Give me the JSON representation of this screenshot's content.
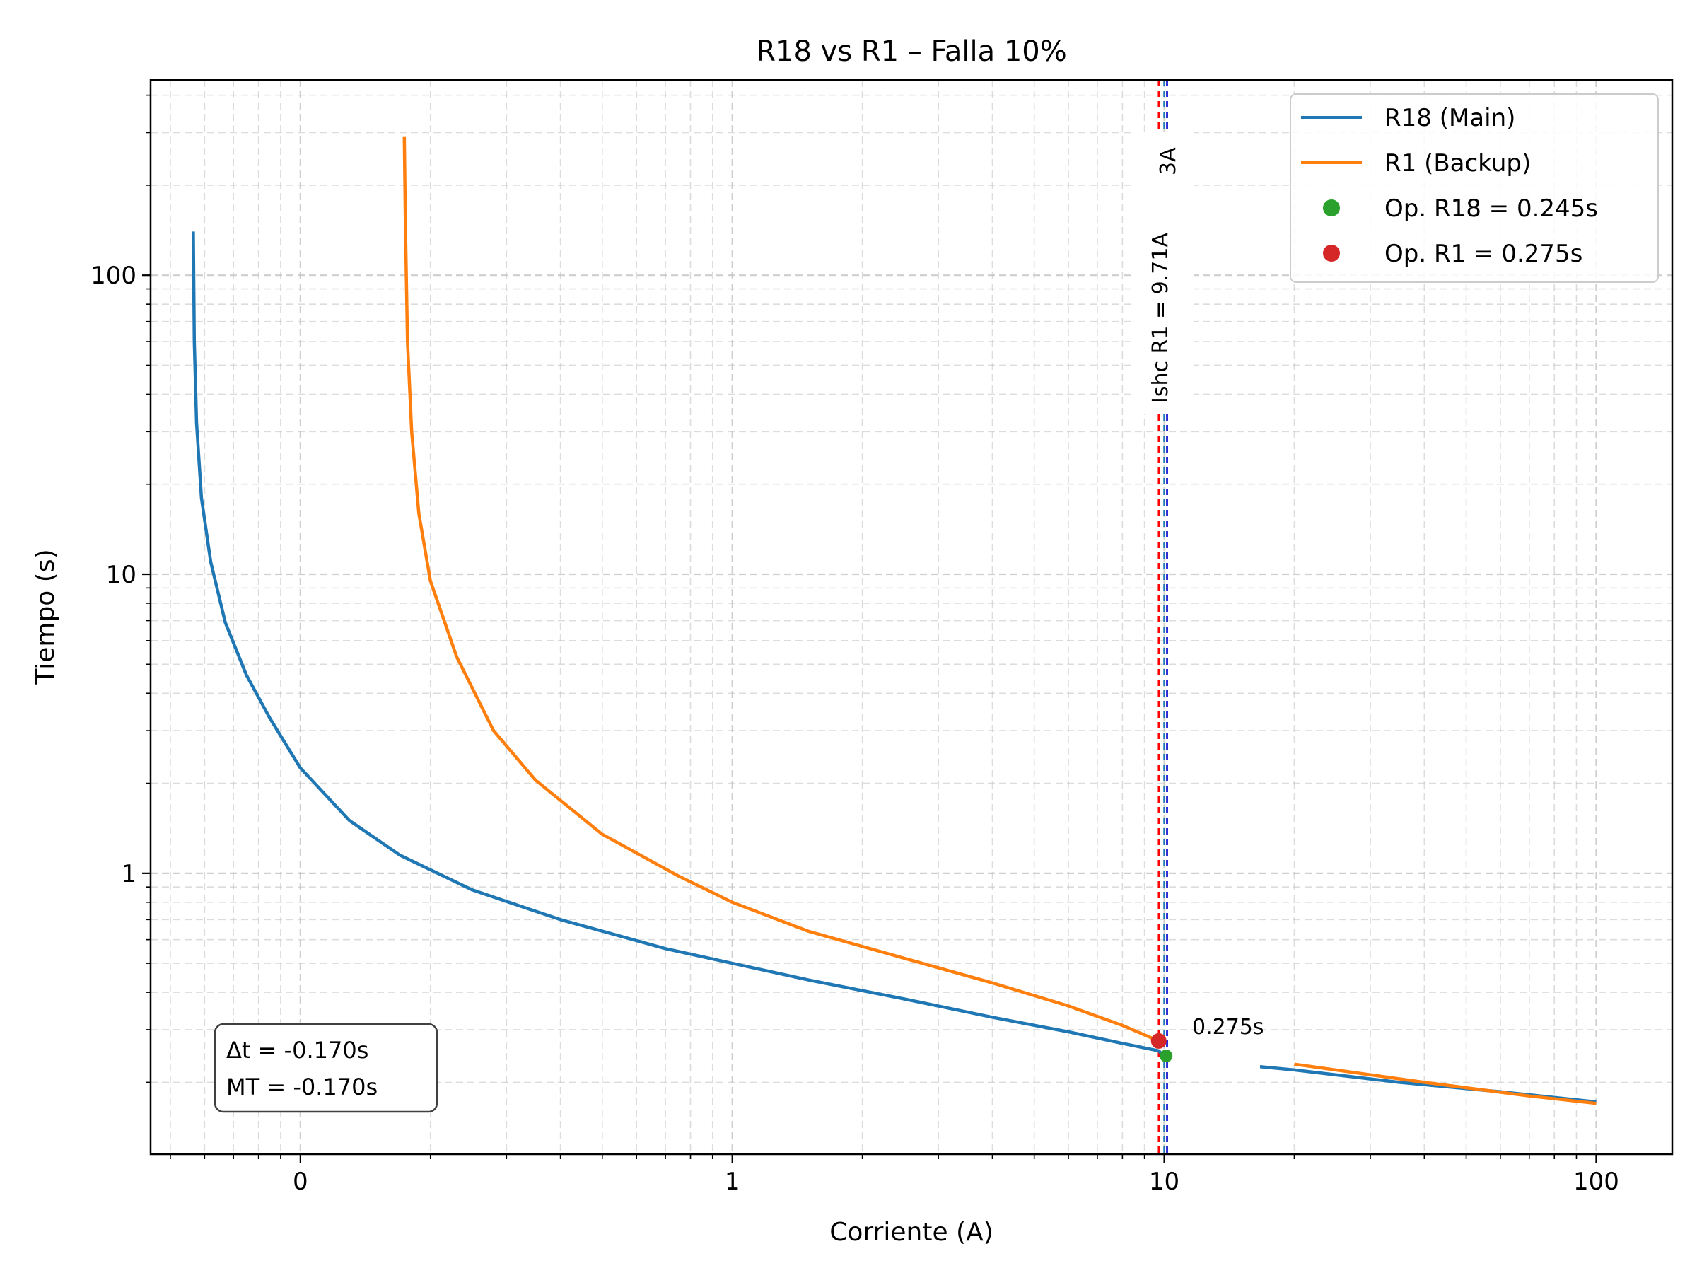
{
  "chart_data": {
    "type": "line",
    "title": "R18 vs R1 – Falla 10%",
    "xlabel": "Corriente (A)",
    "ylabel": "Tiempo (s)",
    "xscale": "log",
    "yscale": "log",
    "xlim": [
      0.045,
      150
    ],
    "ylim": [
      0.115,
      450
    ],
    "x_ticks": [
      {
        "value": 0.1,
        "label": "0"
      },
      {
        "value": 1,
        "label": "1"
      },
      {
        "value": 10,
        "label": "10"
      },
      {
        "value": 100,
        "label": "100"
      }
    ],
    "y_ticks": [
      {
        "value": 1,
        "label": "1"
      },
      {
        "value": 10,
        "label": "10"
      },
      {
        "value": 100,
        "label": "100"
      }
    ],
    "grid": true,
    "legend_position": "top-right",
    "series": [
      {
        "name": "R18 (Main)",
        "color": "#1f77b4",
        "segments": [
          [
            [
              0.0565,
              140
            ],
            [
              0.0568,
              60
            ],
            [
              0.0575,
              32
            ],
            [
              0.059,
              18
            ],
            [
              0.062,
              11
            ],
            [
              0.067,
              6.9
            ],
            [
              0.075,
              4.6
            ],
            [
              0.085,
              3.3
            ],
            [
              0.1,
              2.25
            ],
            [
              0.13,
              1.5
            ],
            [
              0.17,
              1.15
            ],
            [
              0.25,
              0.88
            ],
            [
              0.4,
              0.7
            ],
            [
              0.7,
              0.56
            ],
            [
              1.0,
              0.5
            ],
            [
              1.5,
              0.44
            ],
            [
              2.5,
              0.38
            ],
            [
              4.0,
              0.33
            ],
            [
              6.0,
              0.295
            ],
            [
              8.0,
              0.27
            ],
            [
              9.7,
              0.255
            ],
            [
              10.0,
              0.245
            ]
          ],
          [
            [
              14.5,
              0.23
            ],
            [
              20,
              0.22
            ],
            [
              35,
              0.2
            ],
            [
              60,
              0.186
            ],
            [
              100,
              0.172
            ]
          ]
        ]
      },
      {
        "name": "R1 (Backup)",
        "color": "#ff7f0e",
        "segments": [
          [
            [
              0.174,
              290
            ],
            [
              0.175,
              150
            ],
            [
              0.177,
              60
            ],
            [
              0.181,
              30
            ],
            [
              0.188,
              16
            ],
            [
              0.2,
              9.5
            ],
            [
              0.23,
              5.3
            ],
            [
              0.28,
              3.0
            ],
            [
              0.35,
              2.05
            ],
            [
              0.5,
              1.35
            ],
            [
              0.75,
              0.98
            ],
            [
              1.0,
              0.8
            ],
            [
              1.5,
              0.64
            ],
            [
              2.5,
              0.52
            ],
            [
              4.0,
              0.43
            ],
            [
              6.0,
              0.36
            ],
            [
              8.0,
              0.31
            ],
            [
              9.71,
              0.275
            ]
          ],
          [
            [
              20,
              0.23
            ],
            [
              40,
              0.2
            ],
            [
              70,
              0.18
            ],
            [
              100,
              0.17
            ]
          ]
        ]
      }
    ],
    "points": [
      {
        "name": "Op. R18 = 0.245s",
        "x": 10.1,
        "y": 0.245,
        "color": "#2ca02c"
      },
      {
        "name": "Op. R1 = 0.275s",
        "x": 9.71,
        "y": 0.275,
        "color": "#d62728"
      }
    ],
    "vlines": [
      {
        "x": 9.71,
        "color": "#ff0000",
        "style": "dashed"
      },
      {
        "x": 10.0,
        "color": "#1f77b4",
        "style": "dashed"
      },
      {
        "x": 10.15,
        "color": "#0000cc",
        "style": "dashed"
      }
    ],
    "annotations": {
      "vline_label_main": "Ishc R1 = 9.71A",
      "vline_label_partial": "3A",
      "point_label": "0.275s",
      "info_box": [
        "Δt = -0.170s",
        "MT = -0.170s"
      ]
    }
  }
}
